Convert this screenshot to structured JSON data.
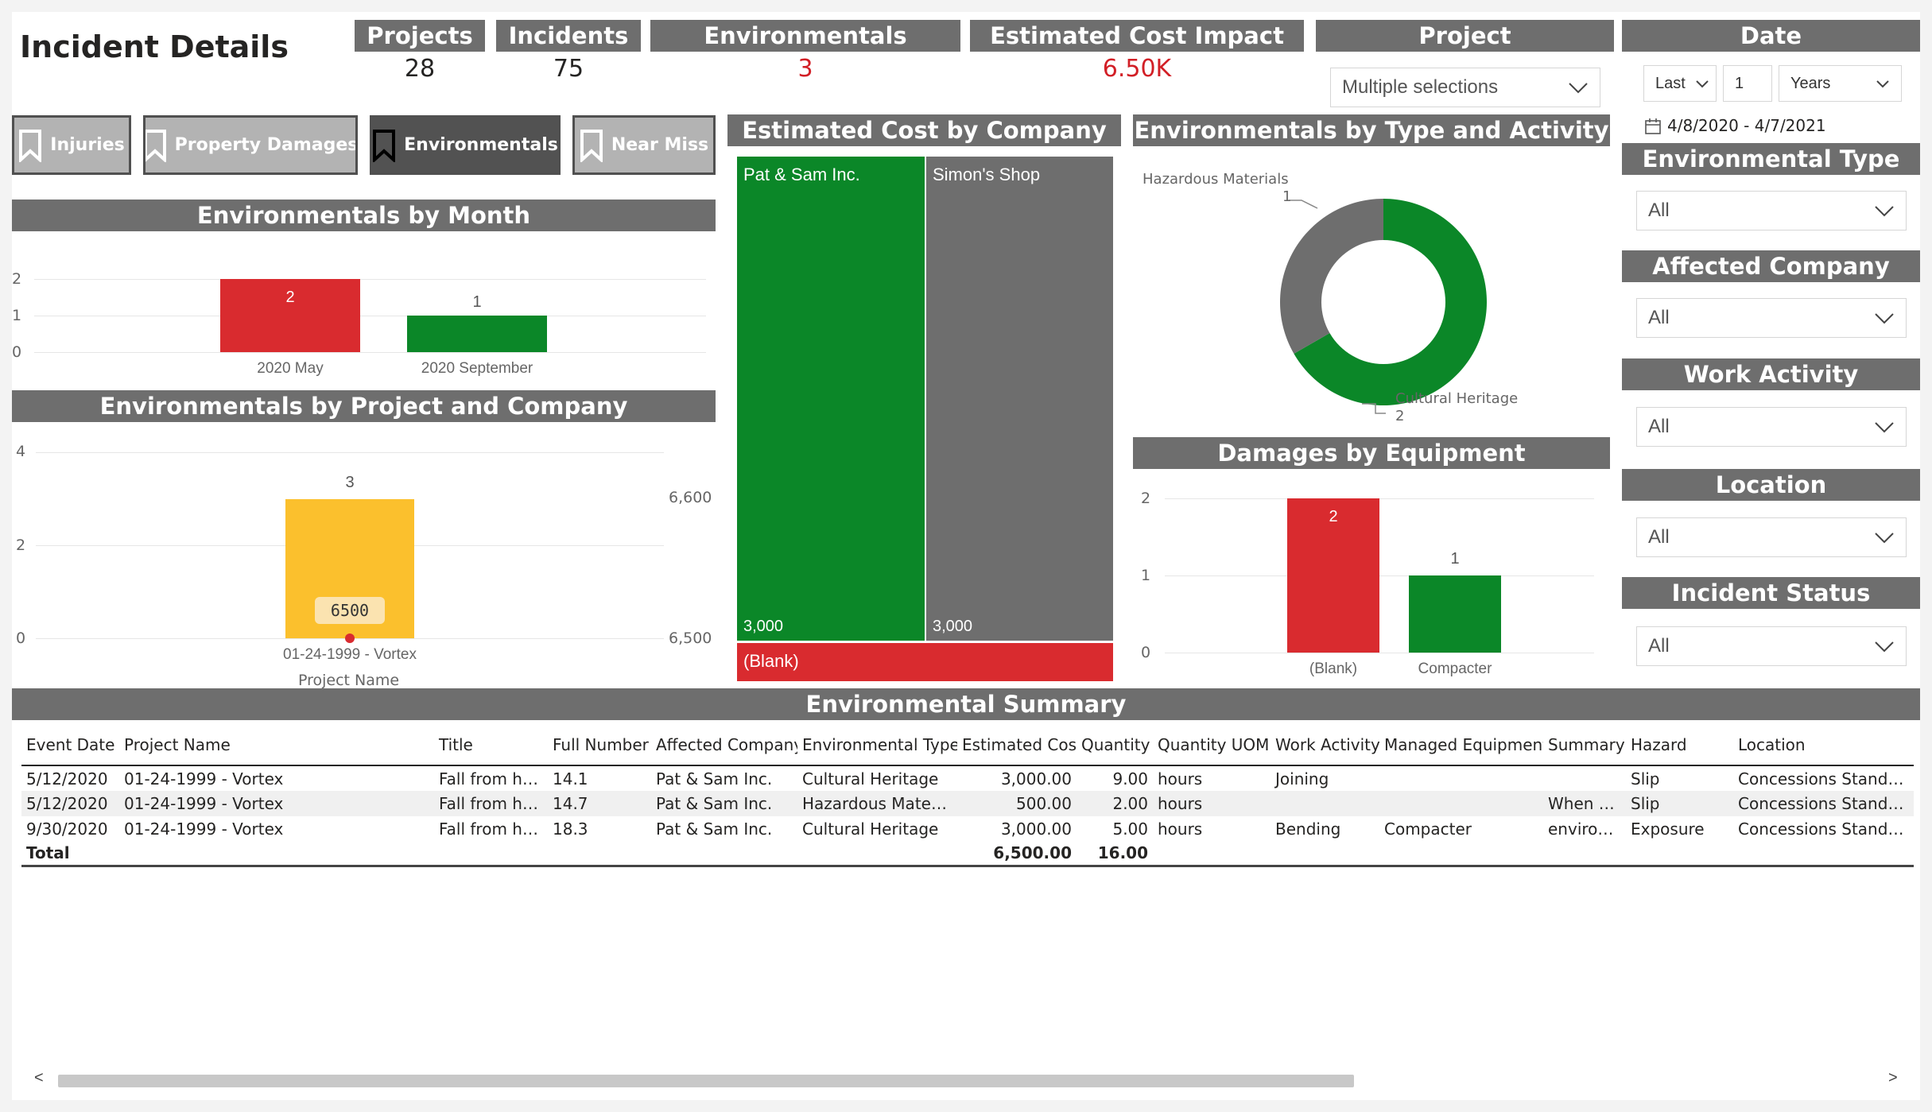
{
  "page_title": "Incident Details",
  "kpis": [
    {
      "label": "Projects",
      "value": "28",
      "color": "#252423"
    },
    {
      "label": "Incidents",
      "value": "75",
      "color": "#252423"
    },
    {
      "label": "Environmentals",
      "value": "3",
      "color": "#d21f26"
    },
    {
      "label": "Estimated Cost Impact",
      "value": "6.50K",
      "color": "#d21f26"
    }
  ],
  "nav_buttons": [
    {
      "label": "Injuries",
      "active": false,
      "icon": "bookmark-icon"
    },
    {
      "label": "Property Damages",
      "active": false,
      "icon": "bookmark-icon"
    },
    {
      "label": "Environmentals",
      "active": true,
      "icon": "bookmark-icon"
    },
    {
      "label": "Near Miss",
      "active": false,
      "icon": "bookmark-icon"
    }
  ],
  "filters": {
    "project": {
      "label": "Project",
      "value": "Multiple selections"
    },
    "date": {
      "label": "Date",
      "relative": "Last",
      "count": "1",
      "unit": "Years",
      "range": "4/8/2020 - 4/7/2021"
    },
    "slicers": [
      {
        "label": "Environmental Type",
        "value": "All"
      },
      {
        "label": "Affected Company",
        "value": "All"
      },
      {
        "label": "Work Activity",
        "value": "All"
      },
      {
        "label": "Location",
        "value": "All"
      },
      {
        "label": "Incident Status",
        "value": "All"
      }
    ]
  },
  "colors": {
    "green": "#0b8728",
    "red": "#d92b2f",
    "gray": "#6e6e6e",
    "yellow": "#fbc02d",
    "header": "#6e6e6e"
  },
  "chart_data": [
    {
      "title": "Environmentals by Month",
      "type": "bar",
      "categories": [
        "2020 May",
        "2020 September"
      ],
      "values": [
        2,
        1
      ],
      "colors": [
        "#d92b2f",
        "#0b8728"
      ],
      "ylim": [
        0,
        2
      ],
      "yticks": [
        "0",
        "1",
        "2"
      ],
      "data_labels": [
        "2",
        "1"
      ]
    },
    {
      "title": "Environmentals by Project and Company",
      "type": "bar",
      "categories": [
        "01-24-1999 - Vortex"
      ],
      "values": [
        3
      ],
      "line_values": [
        6500
      ],
      "xlabel": "Project Name",
      "ylim": [
        0,
        4
      ],
      "yticks": [
        "0",
        "2",
        "4"
      ],
      "y2ticks": [
        "6,500",
        "6,600"
      ],
      "data_labels": [
        "3"
      ],
      "line_labels": [
        "6500"
      ]
    },
    {
      "title": "Estimated Cost by Company",
      "type": "treemap",
      "labels": [
        "Pat & Sam Inc.",
        "Simon's Shop",
        "(Blank)"
      ],
      "values": [
        3000,
        3000,
        500
      ],
      "value_labels": [
        "3,000",
        "3,000",
        ""
      ],
      "colors": [
        "#0b8728",
        "#6e6e6e",
        "#d92b2f"
      ]
    },
    {
      "title": "Environmentals by Type and Activity",
      "type": "pie",
      "labels": [
        "Hazardous Materials",
        "Cultural Heritage"
      ],
      "values": [
        1,
        2
      ],
      "colors": [
        "#6e6e6e",
        "#0b8728"
      ]
    },
    {
      "title": "Damages by Equipment",
      "type": "bar",
      "categories": [
        "(Blank)",
        "Compacter"
      ],
      "values": [
        2,
        1
      ],
      "colors": [
        "#d92b2f",
        "#0b8728"
      ],
      "ylim": [
        0,
        2
      ],
      "yticks": [
        "0",
        "1",
        "2"
      ],
      "data_labels": [
        "2",
        "1"
      ]
    }
  ],
  "summary": {
    "title": "Environmental Summary",
    "columns": [
      "Event Date",
      "Project Name",
      "Title",
      "Full Number",
      "Affected Company",
      "Environmental Type",
      "Estimated Cost",
      "Quantity",
      "Quantity UOM",
      "Work Activity",
      "Managed Equipment",
      "Summary",
      "Hazard",
      "Location"
    ],
    "rows": [
      [
        "5/12/2020",
        "01-24-1999 - Vortex",
        "Fall from hei...",
        "14.1",
        "Pat & Sam Inc.",
        "Cultural Heritage",
        "3,000.00",
        "9.00",
        "hours",
        "Joining",
        "",
        "",
        "Slip",
        "Concessions Stands - M"
      ],
      [
        "5/12/2020",
        "01-24-1999 - Vortex",
        "Fall from hei...",
        "14.7",
        "Pat & Sam Inc.",
        "Hazardous Materials",
        "500.00",
        "2.00",
        "hours",
        "",
        "",
        "When e...",
        "Slip",
        "Concessions Stands - M"
      ],
      [
        "9/30/2020",
        "01-24-1999 - Vortex",
        "Fall from hei...",
        "18.3",
        "Pat & Sam Inc.",
        "Cultural Heritage",
        "3,000.00",
        "5.00",
        "hours",
        "Bending",
        "Compacter",
        "environ...",
        "Exposure",
        "Concessions Stands - M"
      ]
    ],
    "total": [
      "Total",
      "",
      "",
      "",
      "",
      "",
      "6,500.00",
      "16.00",
      "",
      "",
      "",
      "",
      "",
      ""
    ]
  },
  "scrollbar": {
    "left_arrow": "<",
    "right_arrow": ">"
  }
}
